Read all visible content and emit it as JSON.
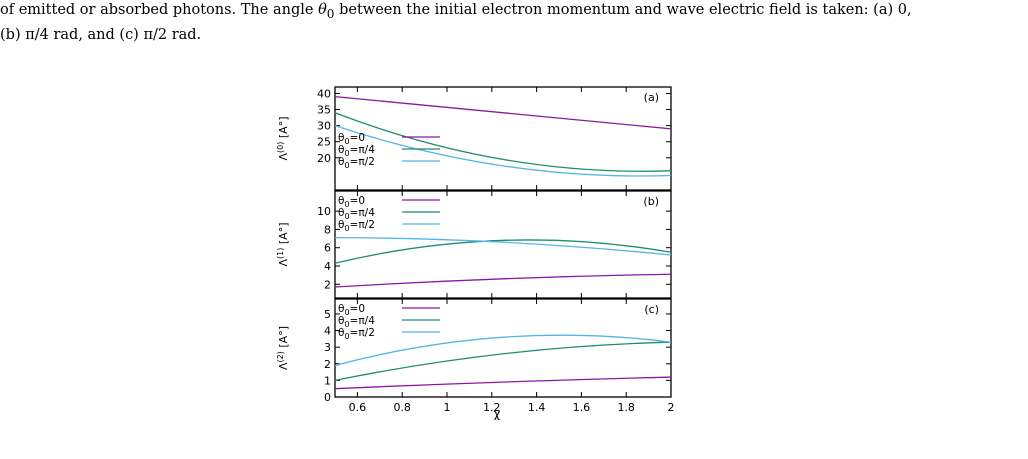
{
  "caption": {
    "line1_pre": "of emitted or absorbed photons. The angle ",
    "theta_sym": "θ",
    "theta_sub": "0",
    "line1_post": " between the initial electron momentum and wave electric field is taken: (a) 0,",
    "line2": "(b) π/4 rad, and (c) π/2 rad."
  },
  "figure": {
    "xlabel": "χ",
    "x_ticks": [
      "0.6",
      "0.8",
      "1",
      "1.2",
      "1.4",
      "1.6",
      "1.8",
      "2"
    ],
    "colors": {
      "purple": "#8b15a8",
      "green": "#1e8c6e",
      "cyan": "#56b4e9"
    }
  },
  "chart_data": [
    {
      "type": "line",
      "panel_label": "(a)",
      "ylabel_prefix": "Λ",
      "ylabel_sup": "(0)",
      "ylabel_suffix": " [A°]",
      "xlim": [
        0.5,
        2
      ],
      "ylim": [
        10,
        42
      ],
      "y_ticks": [
        20,
        25,
        30,
        35,
        40
      ],
      "x": [
        0.5,
        1.25,
        2
      ],
      "series": [
        {
          "name": "θ0=0",
          "color": "#8b15a8",
          "values": [
            39,
            34,
            29
          ]
        },
        {
          "name": "θ0=π/4",
          "color": "#1e8c6e",
          "values": [
            34,
            19.5,
            16
          ]
        },
        {
          "name": "θ0=π/2",
          "color": "#56b4e9",
          "values": [
            30,
            17.5,
            14.5
          ]
        }
      ],
      "legend": {
        "items": [
          {
            "base": "θ",
            "sub": "0",
            "rest": "=0"
          },
          {
            "base": "θ",
            "sub": "0",
            "rest": "=π/4"
          },
          {
            "base": "θ",
            "sub": "0",
            "rest": "=π/2"
          }
        ]
      }
    },
    {
      "type": "line",
      "panel_label": "(b)",
      "ylabel_prefix": "Λ",
      "ylabel_sup": "(1)",
      "ylabel_suffix": " [A°]",
      "xlim": [
        0.5,
        2
      ],
      "ylim": [
        0.5,
        12.2
      ],
      "y_ticks": [
        2,
        4,
        6,
        8,
        10
      ],
      "x": [
        0.5,
        1.25,
        2
      ],
      "series": [
        {
          "name": "θ0=0",
          "color": "#8b15a8",
          "values": [
            1.7,
            2.6,
            3.1
          ]
        },
        {
          "name": "θ0=π/4",
          "color": "#1e8c6e",
          "values": [
            4.3,
            6.8,
            5.5
          ]
        },
        {
          "name": "θ0=π/2",
          "color": "#56b4e9",
          "values": [
            7.1,
            6.6,
            5.2
          ]
        }
      ],
      "legend": {
        "items": [
          {
            "base": "θ",
            "sub": "0",
            "rest": "=0"
          },
          {
            "base": "θ",
            "sub": "0",
            "rest": "=π/4"
          },
          {
            "base": "θ",
            "sub": "0",
            "rest": "=π/2"
          }
        ]
      }
    },
    {
      "type": "line",
      "panel_label": "(c)",
      "ylabel_prefix": "Λ",
      "ylabel_sup": "(2)",
      "ylabel_suffix": " [A°]",
      "xlim": [
        0.5,
        2
      ],
      "ylim": [
        0,
        5.9
      ],
      "y_ticks": [
        0,
        1,
        2,
        3,
        4,
        5
      ],
      "x": [
        0.5,
        1.25,
        2
      ],
      "series": [
        {
          "name": "θ0=0",
          "color": "#8b15a8",
          "values": [
            0.5,
            0.9,
            1.2
          ]
        },
        {
          "name": "θ0=π/4",
          "color": "#1e8c6e",
          "values": [
            1.0,
            2.6,
            3.3
          ]
        },
        {
          "name": "θ0=π/2",
          "color": "#56b4e9",
          "values": [
            1.9,
            3.6,
            3.3
          ]
        }
      ],
      "legend": {
        "items": [
          {
            "base": "θ",
            "sub": "0",
            "rest": "=0"
          },
          {
            "base": "θ",
            "sub": "0",
            "rest": "=π/4"
          },
          {
            "base": "θ",
            "sub": "0",
            "rest": "=π/2"
          }
        ]
      }
    }
  ]
}
